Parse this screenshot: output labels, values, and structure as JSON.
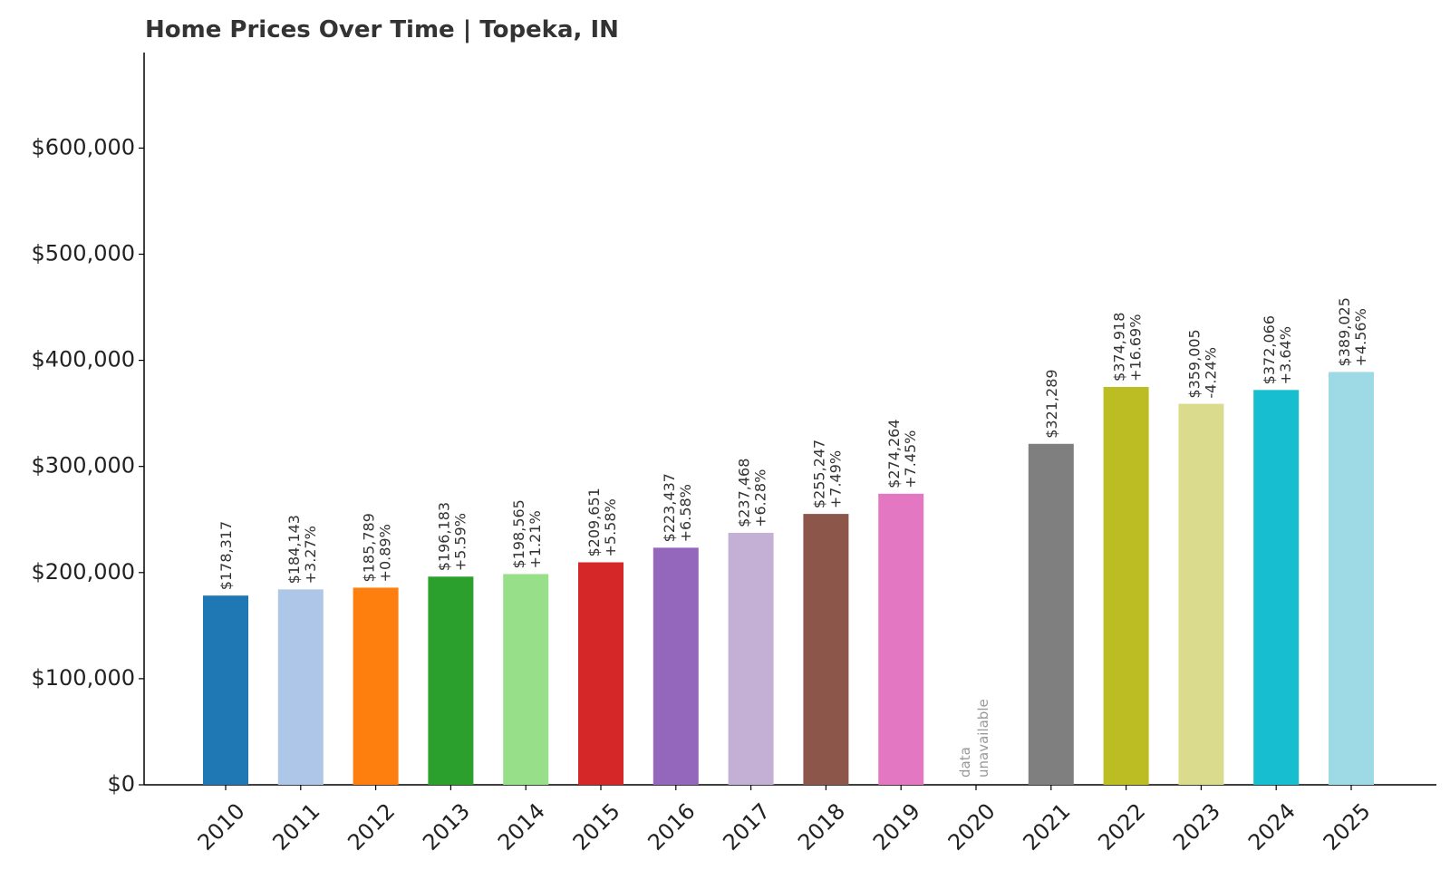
{
  "chart_data": {
    "type": "bar",
    "title": "Home Prices Over Time | Topeka, IN",
    "xlabel": "",
    "ylabel": "",
    "ylim": [
      0,
      690000
    ],
    "yticks": [
      0,
      100000,
      200000,
      300000,
      400000,
      500000,
      600000
    ],
    "ytick_labels": [
      "$0",
      "$100,000",
      "$200,000",
      "$300,000",
      "$400,000",
      "$500,000",
      "$600,000"
    ],
    "grid": false,
    "categories": [
      "2010",
      "2011",
      "2012",
      "2013",
      "2014",
      "2015",
      "2016",
      "2017",
      "2018",
      "2019",
      "2020",
      "2021",
      "2022",
      "2023",
      "2024",
      "2025"
    ],
    "values": [
      178317,
      184143,
      185789,
      196183,
      198565,
      209651,
      223437,
      237468,
      255247,
      274264,
      null,
      321289,
      374918,
      359005,
      372066,
      389025
    ],
    "value_labels": [
      "$178,317",
      "$184,143",
      "$185,789",
      "$196,183",
      "$198,565",
      "$209,651",
      "$223,437",
      "$237,468",
      "$255,247",
      "$274,264",
      "",
      "$321,289",
      "$374,918",
      "$359,005",
      "$372,066",
      "$389,025"
    ],
    "change_labels": [
      "",
      "+3.27%",
      "+0.89%",
      "+5.59%",
      "+1.21%",
      "+5.58%",
      "+6.58%",
      "+6.28%",
      "+7.49%",
      "+7.45%",
      "",
      "",
      "+16.69%",
      "-4.24%",
      "+3.64%",
      "+4.56%"
    ],
    "missing_label": [
      "data",
      "unavailable"
    ],
    "colors": [
      "#1f77b4",
      "#aec7e8",
      "#ff7f0e",
      "#2ca02c",
      "#98df8a",
      "#d62728",
      "#9467bd",
      "#c5b0d5",
      "#8c564b",
      "#e377c2",
      "#f7b6d2",
      "#7f7f7f",
      "#bcbd22",
      "#dbdb8d",
      "#17becf",
      "#9edae5"
    ]
  }
}
